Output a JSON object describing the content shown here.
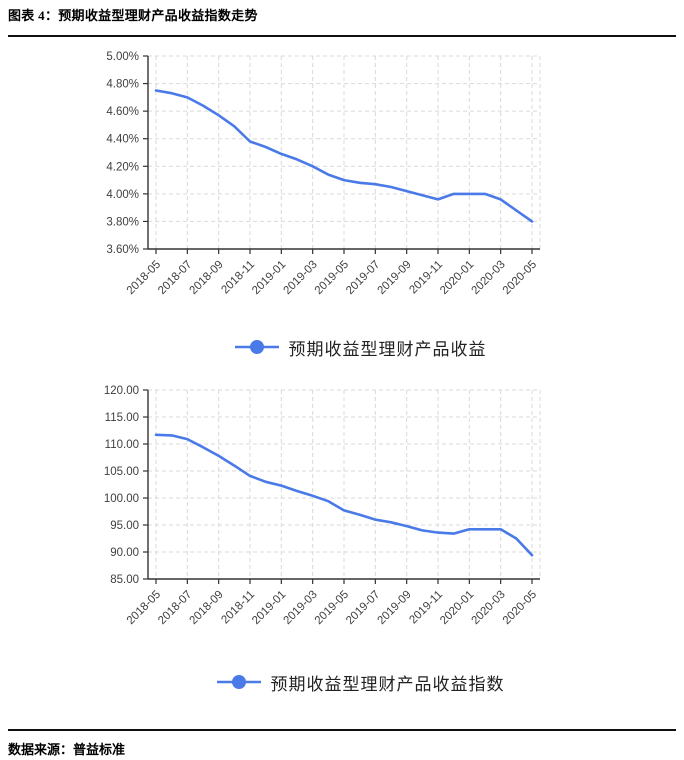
{
  "header": {
    "title": "图表 4：预期收益型理财产品收益指数走势"
  },
  "footer": {
    "source_label": "数据来源：",
    "source_value": "普益标准"
  },
  "colors": {
    "line": "#4a7ae8",
    "grid": "#d9d9d9",
    "axis": "#333333",
    "tick_label": "#3f3f3f"
  },
  "chart_data": [
    {
      "type": "line",
      "legend": "预期收益型理财产品收益",
      "x_tick_labels": [
        "2018-05",
        "2018-07",
        "2018-09",
        "2018-11",
        "2019-01",
        "2019-03",
        "2019-05",
        "2019-07",
        "2019-09",
        "2019-11",
        "2020-01",
        "2020-03",
        "2020-05"
      ],
      "x": [
        "2018-05",
        "2018-06",
        "2018-07",
        "2018-08",
        "2018-09",
        "2018-10",
        "2018-11",
        "2018-12",
        "2019-01",
        "2019-02",
        "2019-03",
        "2019-04",
        "2019-05",
        "2019-06",
        "2019-07",
        "2019-08",
        "2019-09",
        "2019-10",
        "2019-11",
        "2019-12",
        "2020-01",
        "2020-02",
        "2020-03",
        "2020-04",
        "2020-05"
      ],
      "values": [
        4.75,
        4.73,
        4.7,
        4.64,
        4.57,
        4.49,
        4.38,
        4.34,
        4.29,
        4.25,
        4.2,
        4.14,
        4.1,
        4.08,
        4.07,
        4.05,
        4.02,
        3.99,
        3.96,
        4.0,
        4.0,
        4.0,
        3.96,
        3.88,
        3.8
      ],
      "ylim": [
        3.6,
        5.0
      ],
      "y_tick_labels": [
        "5.00%",
        "4.80%",
        "4.60%",
        "4.40%",
        "4.20%",
        "4.00%",
        "3.80%",
        "3.60%"
      ],
      "grid": true,
      "legend_position": "bottom"
    },
    {
      "type": "line",
      "legend": "预期收益型理财产品收益指数",
      "x_tick_labels": [
        "2018-05",
        "2018-07",
        "2018-09",
        "2018-11",
        "2019-01",
        "2019-03",
        "2019-05",
        "2019-07",
        "2019-09",
        "2019-11",
        "2020-01",
        "2020-03",
        "2020-05"
      ],
      "x": [
        "2018-05",
        "2018-06",
        "2018-07",
        "2018-08",
        "2018-09",
        "2018-10",
        "2018-11",
        "2018-12",
        "2019-01",
        "2019-02",
        "2019-03",
        "2019-04",
        "2019-05",
        "2019-06",
        "2019-07",
        "2019-08",
        "2019-09",
        "2019-10",
        "2019-11",
        "2019-12",
        "2020-01",
        "2020-02",
        "2020-03",
        "2020-04",
        "2020-05"
      ],
      "values": [
        111.7,
        111.6,
        110.9,
        109.4,
        107.8,
        106.0,
        104.1,
        103.0,
        102.3,
        101.3,
        100.4,
        99.4,
        97.7,
        96.9,
        96.0,
        95.5,
        94.8,
        94.0,
        93.6,
        93.4,
        94.2,
        94.2,
        94.2,
        92.5,
        89.4
      ],
      "ylim": [
        85.0,
        120.0
      ],
      "y_tick_labels": [
        "120.00",
        "115.00",
        "110.00",
        "105.00",
        "100.00",
        "95.00",
        "90.00",
        "85.00"
      ],
      "grid": true,
      "legend_position": "bottom"
    }
  ]
}
